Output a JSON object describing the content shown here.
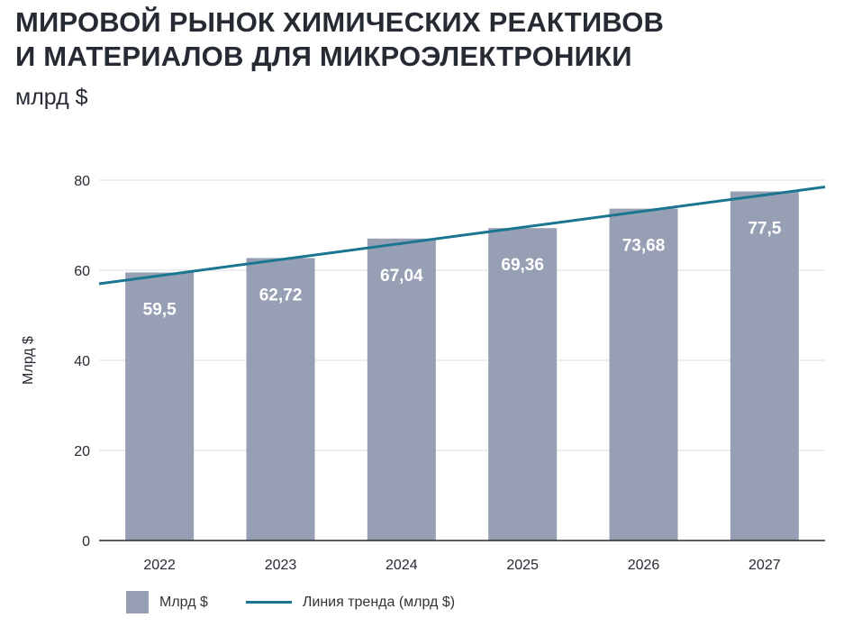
{
  "header": {
    "title_line1": "МИРОВОЙ РЫНОК ХИМИЧЕСКИХ РЕАКТИВОВ",
    "title_line2": "И МАТЕРИАЛОВ ДЛЯ МИКРОЭЛЕКТРОНИКИ",
    "subtitle": "млрд $"
  },
  "chart_data": {
    "type": "bar",
    "categories": [
      "2022",
      "2023",
      "2024",
      "2025",
      "2026",
      "2027"
    ],
    "series": [
      {
        "name": "Млрд $",
        "values": [
          59.5,
          62.72,
          67.04,
          69.36,
          73.68,
          77.5
        ],
        "value_labels": [
          "59,5",
          "62,72",
          "67,04",
          "69,36",
          "73,68",
          "77,5"
        ]
      },
      {
        "name": "Линия тренда (млрд $)",
        "type": "line",
        "start": 57.0,
        "end": 78.5
      }
    ],
    "ylabel": "Млрд $",
    "ylim": [
      0,
      80
    ],
    "yticks": [
      "0",
      "20",
      "40",
      "60",
      "80"
    ],
    "grid": true,
    "legend": "bottom-left"
  },
  "legend": {
    "bar_label": "Млрд $",
    "line_label": "Линия тренда (млрд $)"
  },
  "colors": {
    "bar": "#979fb5",
    "trend": "#1a7690",
    "grid": "#d9dbe0",
    "axis": "#2b2b2b",
    "value_label": "#ffffff",
    "text": "#262b33"
  }
}
